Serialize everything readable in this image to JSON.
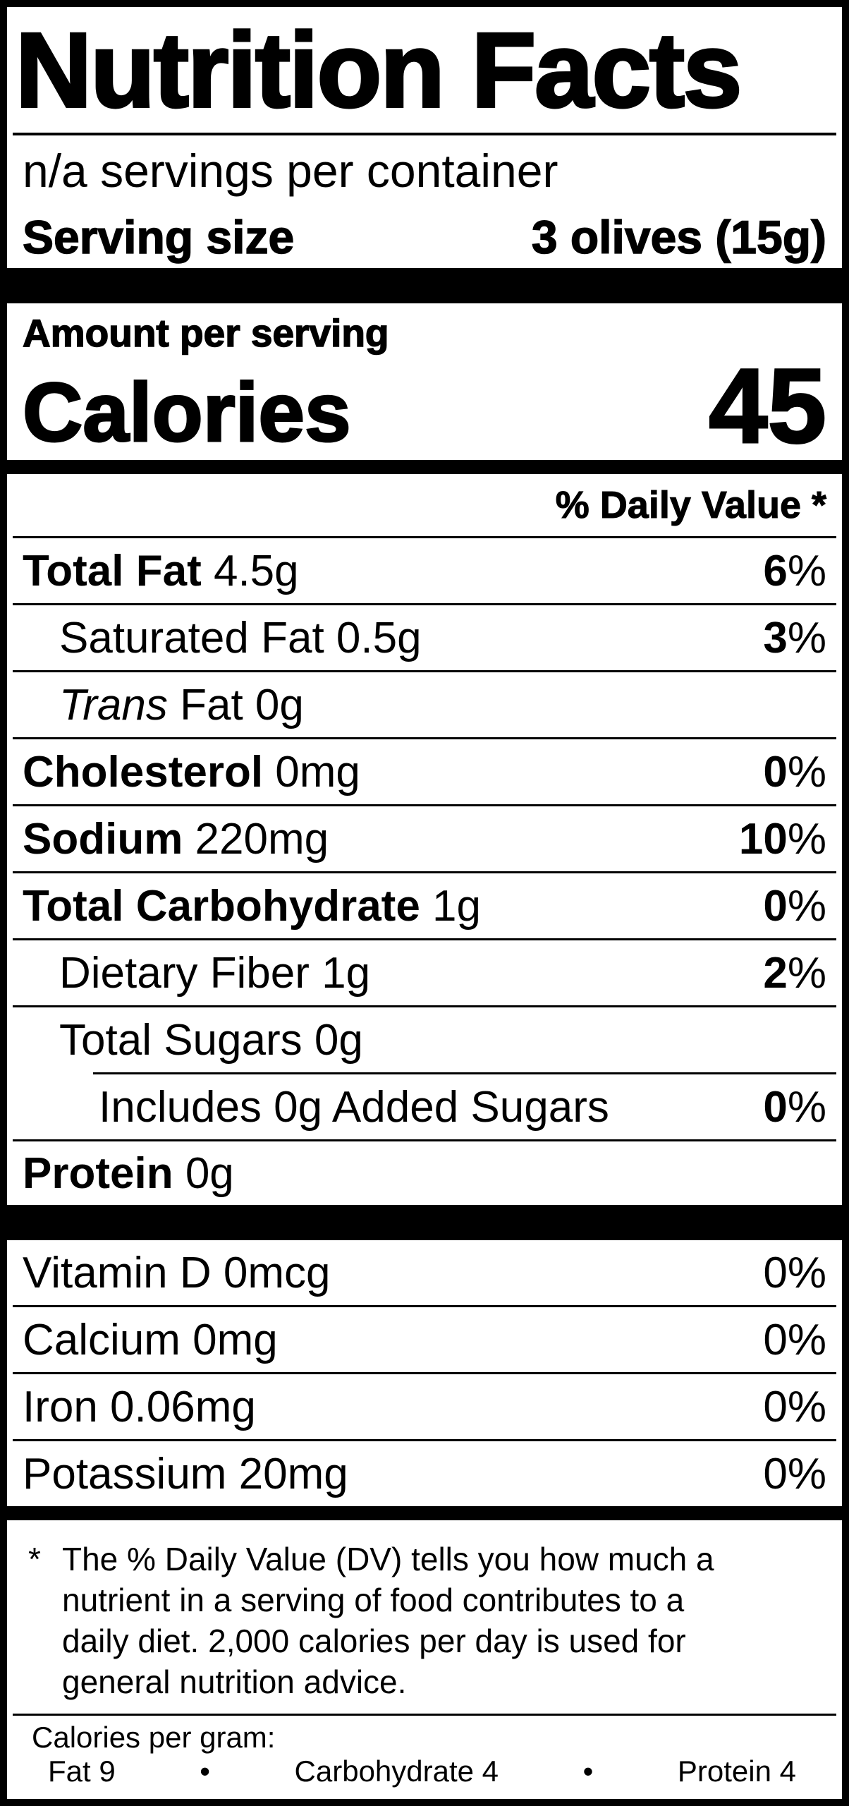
{
  "label": {
    "title": "Nutrition Facts",
    "servings_per_container": "n/a servings per container",
    "serving_size_label": "Serving size",
    "serving_size_value": "3 olives (15g)",
    "amount_per_serving": "Amount per serving",
    "calories_label": "Calories",
    "calories_value": "45",
    "daily_value_header": "% Daily Value *",
    "percent_sign": "%",
    "rows": [
      {
        "text": "Total Fat",
        "suffix": " 4.5g",
        "text_style": "bold",
        "indent": 0,
        "dv": "6",
        "dv_bold": true,
        "divider": "full"
      },
      {
        "text": "Saturated Fat 0.5g",
        "suffix": "",
        "text_style": "regular",
        "indent": 1,
        "dv": "3",
        "dv_bold": true,
        "divider": "full"
      },
      {
        "text": "Trans",
        "suffix": " Fat 0g",
        "text_style": "italic",
        "indent": 1,
        "dv": null,
        "dv_bold": false,
        "divider": "full"
      },
      {
        "text": "Cholesterol",
        "suffix": " 0mg",
        "text_style": "bold",
        "indent": 0,
        "dv": "0",
        "dv_bold": true,
        "divider": "full"
      },
      {
        "text": "Sodium",
        "suffix": " 220mg",
        "text_style": "bold",
        "indent": 0,
        "dv": "10",
        "dv_bold": true,
        "divider": "full"
      },
      {
        "text": "Total Carbohydrate",
        "suffix": " 1g",
        "text_style": "bold",
        "indent": 0,
        "dv": "0",
        "dv_bold": true,
        "divider": "full"
      },
      {
        "text": "Dietary Fiber 1g",
        "suffix": "",
        "text_style": "regular",
        "indent": 1,
        "dv": "2",
        "dv_bold": true,
        "divider": "full"
      },
      {
        "text": "Total Sugars 0g",
        "suffix": "",
        "text_style": "regular",
        "indent": 1,
        "dv": null,
        "dv_bold": false,
        "divider": "partial"
      },
      {
        "text": "Includes 0g Added Sugars",
        "suffix": "",
        "text_style": "regular",
        "indent": 2,
        "dv": "0",
        "dv_bold": true,
        "divider": "full"
      },
      {
        "text": "Protein",
        "suffix": " 0g",
        "text_style": "bold",
        "indent": 0,
        "dv": null,
        "dv_bold": false,
        "divider": "none"
      }
    ],
    "vitamins": [
      {
        "text": "Vitamin D 0mcg",
        "dv": "0",
        "divider": "full"
      },
      {
        "text": "Calcium 0mg",
        "dv": "0",
        "divider": "full"
      },
      {
        "text": "Iron 0.06mg",
        "dv": "0",
        "divider": "full"
      },
      {
        "text": "Potassium 20mg",
        "dv": "0",
        "divider": "none"
      }
    ],
    "footnote": {
      "marker": "*",
      "lines": [
        "The % Daily Value (DV) tells you how much a",
        "nutrient in a serving of food contributes to a",
        "daily diet. 2,000 calories per day is used for",
        "general nutrition advice."
      ]
    },
    "calories_per_gram": {
      "heading": "Calories per gram:",
      "separator": "•",
      "items": [
        "Fat 9",
        "Carbohydrate 4",
        "Protein 4"
      ]
    },
    "colors": {
      "ink": "#000000",
      "paper": "#ffffff"
    }
  }
}
